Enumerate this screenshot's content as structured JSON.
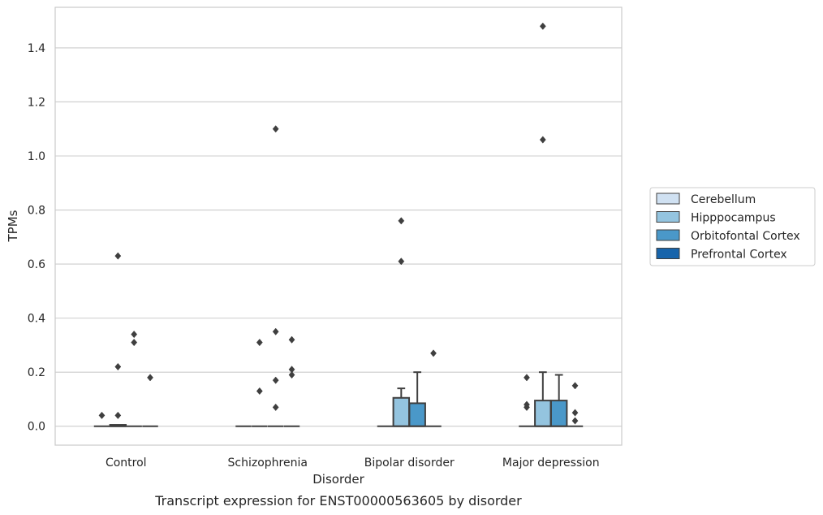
{
  "chart_data": {
    "type": "box",
    "caption": "Transcript expression for ENST00000563605 by disorder",
    "xlabel": "Disorder",
    "ylabel": "TPMs",
    "ylim": [
      -0.07,
      1.55
    ],
    "yticks": [
      0.0,
      0.2,
      0.4,
      0.6,
      0.8,
      1.0,
      1.2,
      1.4
    ],
    "ytick_labels": [
      "0.0",
      "0.2",
      "0.4",
      "0.6",
      "0.8",
      "1.0",
      "1.2",
      "1.4"
    ],
    "grid": "horizontal",
    "legend_position": "right",
    "categories": [
      "Control",
      "Schizophrenia",
      "Bipolar disorder",
      "Major depression"
    ],
    "series": [
      {
        "name": "Cerebellum",
        "color": "#d0e1f2",
        "boxes": [
          {
            "q1": 0,
            "median": 0,
            "q3": 0,
            "whisker_low": 0,
            "whisker_high": 0,
            "outliers": [
              0.04
            ]
          },
          {
            "q1": 0,
            "median": 0,
            "q3": 0,
            "whisker_low": 0,
            "whisker_high": 0,
            "outliers": []
          },
          {
            "q1": 0,
            "median": 0,
            "q3": 0,
            "whisker_low": 0,
            "whisker_high": 0,
            "outliers": []
          },
          {
            "q1": 0,
            "median": 0,
            "q3": 0,
            "whisker_low": 0,
            "whisker_high": 0,
            "outliers": [
              0.18,
              0.07,
              0.08
            ]
          }
        ]
      },
      {
        "name": "Hipppocampus",
        "color": "#94c4df",
        "boxes": [
          {
            "q1": 0,
            "median": 0,
            "q3": 0.005,
            "whisker_low": 0,
            "whisker_high": 0.005,
            "outliers": [
              0.63,
              0.22,
              0.04
            ]
          },
          {
            "q1": 0,
            "median": 0,
            "q3": 0,
            "whisker_low": 0,
            "whisker_high": 0,
            "outliers": [
              0.31,
              0.13
            ]
          },
          {
            "q1": 0,
            "median": 0,
            "q3": 0.105,
            "whisker_low": 0,
            "whisker_high": 0.14,
            "outliers": [
              0.76,
              0.61
            ]
          },
          {
            "q1": 0,
            "median": 0,
            "q3": 0.095,
            "whisker_low": 0,
            "whisker_high": 0.2,
            "outliers": [
              1.48,
              1.06
            ]
          }
        ]
      },
      {
        "name": "Orbitofontal Cortex",
        "color": "#4a98c9",
        "boxes": [
          {
            "q1": 0,
            "median": 0,
            "q3": 0,
            "whisker_low": 0,
            "whisker_high": 0,
            "outliers": [
              0.34,
              0.31
            ]
          },
          {
            "q1": 0,
            "median": 0,
            "q3": 0,
            "whisker_low": 0,
            "whisker_high": 0,
            "outliers": [
              1.1,
              0.35,
              0.17,
              0.07
            ]
          },
          {
            "q1": 0,
            "median": 0,
            "q3": 0.085,
            "whisker_low": 0,
            "whisker_high": 0.2,
            "outliers": []
          },
          {
            "q1": 0,
            "median": 0,
            "q3": 0.095,
            "whisker_low": 0,
            "whisker_high": 0.19,
            "outliers": []
          }
        ]
      },
      {
        "name": "Prefrontal Cortex",
        "color": "#1764ab",
        "boxes": [
          {
            "q1": 0,
            "median": 0,
            "q3": 0,
            "whisker_low": 0,
            "whisker_high": 0,
            "outliers": [
              0.18
            ]
          },
          {
            "q1": 0,
            "median": 0,
            "q3": 0,
            "whisker_low": 0,
            "whisker_high": 0,
            "outliers": [
              0.32,
              0.21,
              0.19
            ]
          },
          {
            "q1": 0,
            "median": 0,
            "q3": 0,
            "whisker_low": 0,
            "whisker_high": 0,
            "outliers": [
              0.27
            ]
          },
          {
            "q1": 0,
            "median": 0,
            "q3": 0,
            "whisker_low": 0,
            "whisker_high": 0,
            "outliers": [
              0.15,
              0.05,
              0.02
            ]
          }
        ]
      }
    ]
  }
}
